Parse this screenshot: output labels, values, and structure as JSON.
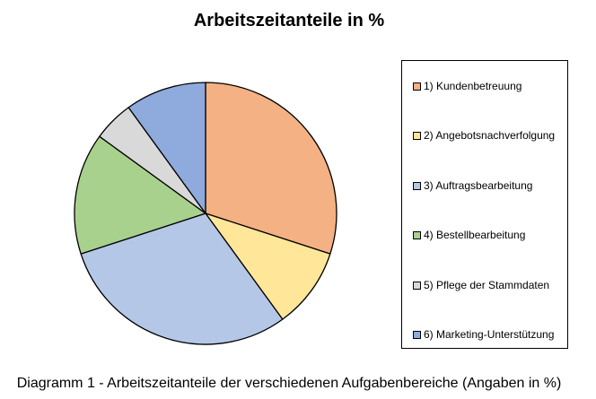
{
  "chart_data": {
    "type": "pie",
    "title": "Arbeitszeitanteile in %",
    "caption": "Diagramm 1 - Arbeitszeitanteile der verschiedenen Aufgabenbereiche (Angaben in %)",
    "legend_position": "right",
    "slices": [
      {
        "label": "1) Kundenbetreuung",
        "value": 30,
        "color": "#F4B183"
      },
      {
        "label": "2) Angebotsnachverfolgung",
        "value": 10,
        "color": "#FFE699"
      },
      {
        "label": "3) Auftragsbearbeitung",
        "value": 30,
        "color": "#B4C7E7"
      },
      {
        "label": "4) Bestellbearbeitung",
        "value": 15,
        "color": "#A9D18E"
      },
      {
        "label": "5) Pflege der Stammdaten",
        "value": 5,
        "color": "#D9D9D9"
      },
      {
        "label": "6) Marketing-Unterstützung",
        "value": 10,
        "color": "#8FAADC"
      }
    ]
  }
}
